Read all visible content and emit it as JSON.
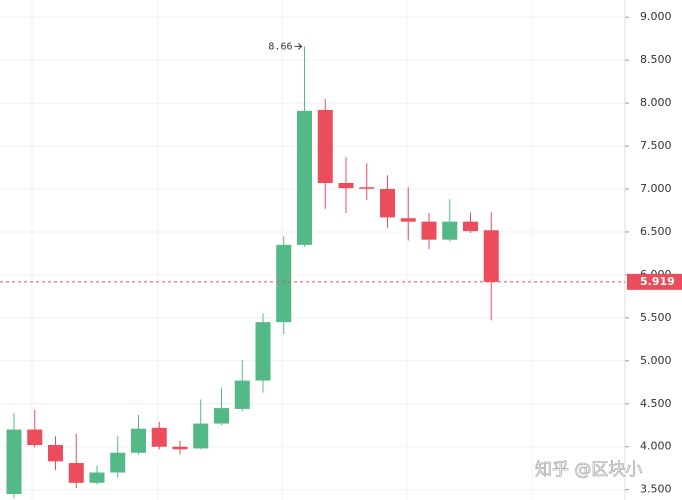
{
  "chart_data": {
    "type": "candlestick",
    "up_color": "#53b987",
    "down_color": "#eb4d5c",
    "open": [
      3.45,
      4.2,
      4.02,
      3.81,
      3.58,
      3.7,
      3.93,
      4.22,
      4.0,
      3.98,
      4.27,
      4.44,
      4.77,
      5.45,
      6.35,
      7.92,
      7.07,
      7.02,
      7.0,
      6.66,
      6.62,
      6.41,
      6.62,
      6.52
    ],
    "high": [
      4.39,
      4.43,
      4.12,
      4.15,
      3.78,
      4.12,
      4.37,
      4.29,
      4.07,
      4.55,
      4.69,
      5.01,
      5.55,
      6.45,
      8.66,
      8.05,
      7.37,
      7.3,
      7.16,
      7.02,
      6.72,
      6.88,
      6.73,
      6.73
    ],
    "low": [
      3.4,
      3.99,
      3.73,
      3.52,
      3.56,
      3.64,
      3.91,
      3.97,
      3.91,
      3.97,
      4.25,
      4.41,
      4.63,
      5.31,
      6.33,
      6.77,
      6.72,
      6.87,
      6.55,
      6.4,
      6.3,
      6.39,
      6.49,
      5.47
    ],
    "close": [
      4.2,
      4.02,
      3.83,
      3.58,
      3.7,
      3.93,
      4.21,
      4.0,
      3.97,
      4.27,
      4.45,
      4.77,
      5.45,
      6.35,
      7.91,
      7.07,
      7.01,
      7.01,
      6.67,
      6.62,
      6.41,
      6.62,
      6.51,
      5.919
    ],
    "max_annotation": 8.66,
    "last_price": 5.919,
    "ylim": [
      3.38,
      9.2
    ],
    "yticks": [
      {
        "value": 3.5,
        "label": "3.500"
      },
      {
        "value": 4,
        "label": "4.000"
      },
      {
        "value": 4.5,
        "label": "4.500"
      },
      {
        "value": 5,
        "label": "5.000"
      },
      {
        "value": 5.5,
        "label": "5.500"
      },
      {
        "value": 6,
        "label": "6.000"
      },
      {
        "value": 6.5,
        "label": "6.500"
      },
      {
        "value": 7,
        "label": "7.000"
      },
      {
        "value": 7.5,
        "label": "7.500"
      },
      {
        "value": 8,
        "label": "8.000"
      },
      {
        "value": 8.5,
        "label": "8.500"
      },
      {
        "value": 9,
        "label": "9.000"
      }
    ],
    "grid": true,
    "watermark": "知乎 @区块小"
  }
}
